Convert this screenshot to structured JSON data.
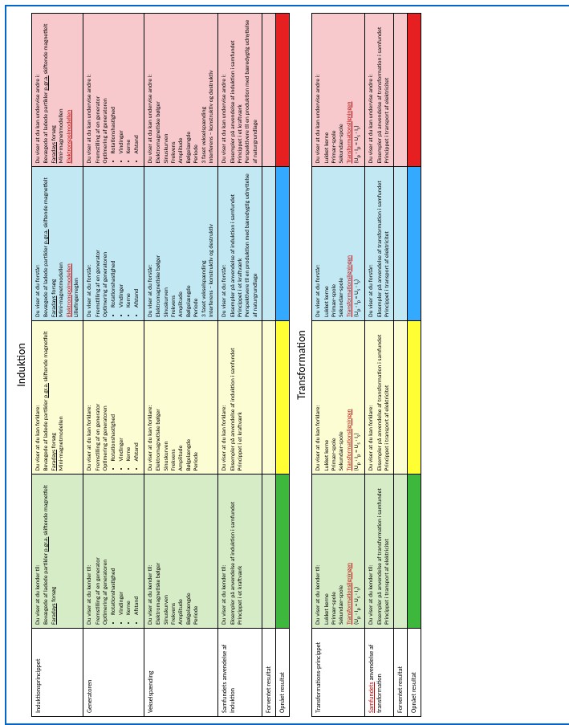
{
  "colors": {
    "border": "#0066cc",
    "col_green": "#d6ecc6",
    "col_yellow": "#fdfdd3",
    "col_blue": "#c2e8f3",
    "col_pink": "#f7c9cd",
    "strong_green": "#3db83d",
    "strong_yellow": "#ffff33",
    "strong_blue": "#33aaff",
    "strong_red": "#e62020"
  },
  "column_heads": {
    "green": "Du viser at du kender til:",
    "yellow": "Du viser at du kan forklare:",
    "blue": "Du viser at du forstår:",
    "pink": "Du viser at du kan undervise andre i:"
  },
  "sections": [
    {
      "title": "Induktion",
      "rows": [
        {
          "label": "Induktionsprincippet",
          "green": [
            "Bevægede af ladede partikler <span class='u'>p.gr.a.</span> skiftende magnetfelt",
            "<span class='u'>Faradays</span> forsøg"
          ],
          "yellow": [
            "Bevægede af ladede partikler <span class='u'>p.gr.a.</span> skiftende magnetfelt",
            "<span class='u'>Faradays</span> forsøg",
            "Mini-magnetmodellen"
          ],
          "blue": [
            "Bevægede af ladede partikler <span class='u'>p.gr.a.</span> skiftende magnetfelt",
            "<span class='u'>Faradays</span> forsøg",
            "Mini-magnetmodellen",
            "<span class='ur'>Elektronspolmodellen</span>",
            "Lillefingerreglen"
          ],
          "pink": [
            "Bevægede af ladede partikler <span class='u'>p.gr.a.</span> skiftende magnetfelt",
            "<span class='u'>Faradays</span> forsøg",
            "Mini-magnetmodellen",
            "<span class='ur'>Elektronspolmodellen</span>"
          ]
        },
        {
          "label": "Generatoren",
          "green": [
            "Fremstilling af en generator",
            "Optimering af generatoren",
            {
              "bullets": [
                "Rotationshastighed",
                "Vindinger",
                "Kerne",
                "Afstand"
              ]
            }
          ],
          "yellow": [
            "Fremstilling af en generator",
            "Optimering af generatoren",
            {
              "bullets": [
                "Rotationshastighed",
                "Vindinger",
                "Kerne",
                "Afstand"
              ]
            }
          ],
          "blue": [
            "Fremstilling af en generator",
            "Optimering af generatoren",
            {
              "bullets": [
                "Rotationshastighed",
                "Vindinger",
                "Kerne",
                "Afstand"
              ]
            }
          ],
          "pink": [
            "Fremstilling af en generator",
            "Optimering af generatoren",
            {
              "bullets": [
                "Rotationshastighed",
                "Vindinger",
                "Kerne",
                "Afstand"
              ]
            }
          ]
        },
        {
          "label": "Vekselspænding",
          "green": [
            "Elektromagnetiske bølger",
            "Sinuskurven",
            "Frekvens",
            "Amplitude",
            "Bølgelængde",
            "Periode"
          ],
          "yellow": [
            "Elektromagnetiske bølger",
            "Sinuskurven",
            "Frekvens",
            "Amplitude",
            "Bølgelængde",
            "Periode"
          ],
          "blue": [
            "Elektromagnetiske bølger",
            "Sinuskurven",
            "Frekvens",
            "Amplitude",
            "Bølgelængde",
            "Periode",
            "3 faset vekselspænding",
            "Interferens – konstruktiv og destruktiv"
          ],
          "pink": [
            "Elektromagnetiske bølger",
            "Sinuskurven",
            "Frekvens",
            "Amplitude",
            "Bølgelængde",
            "Periode",
            "3 faset vekselspænding",
            "Interferens – konstruktiv og destruktiv"
          ]
        },
        {
          "label": "Samfundets anvendelse af induktion",
          "green": [
            "Eksempler på anvendelse af induktion i samfundet",
            "Princippet i et kraftværk"
          ],
          "yellow": [
            "Eksempler på anvendelse af induktion i samfundet",
            "Princippet i et kraftværk"
          ],
          "blue": [
            "Eksempler på anvendelse af induktion i samfundet",
            "Princippet i et kraftværk",
            "Perspektivere til en produktion med bæredygtig udnyttelse af naturgrundlage"
          ],
          "pink": [
            "Eksempler på anvendelse af induktion i samfundet",
            "Princippet i et kraftværk",
            "Perspektivere til en produktion med bæredygtig udnyttelse af naturgrundlage"
          ]
        }
      ],
      "footer_rows": [
        "Forventet resultat",
        "Opnået resultat"
      ]
    },
    {
      "title": "Transformation",
      "rows": [
        {
          "label": "Transformations-princippet",
          "green": [
            "Lukket kerne",
            "Primær-spole",
            "Sekundær-spole",
            "<span class='ur'>Transformationsligningen</span>",
            "(U<sub>p</sub> · I<sub>p</sub> = U<sub>s</sub> · I<sub>s</sub>)"
          ],
          "yellow": [
            "Lukket kerne",
            "Primær-spole",
            "Sekundær-spole",
            "<span class='ur'>Transformationsligningen</span>",
            "(U<sub>p</sub> · I<sub>p</sub> = U<sub>s</sub> · I<sub>s</sub>)"
          ],
          "blue": [
            "Lukket kerne",
            "Primær-spole",
            "Sekundær-spole",
            "<span class='ur'>Transformationsligningen</span>",
            "(U<sub>p</sub> · I<sub>p</sub> = U<sub>s</sub> · I<sub>s</sub>)"
          ],
          "pink": [
            "Lukket kerne",
            "Primær-spole",
            "Sekundær-spole",
            "<span class='ur'>Transformationsligningen</span>",
            "(U<sub>p</sub> · I<sub>p</sub> = U<sub>s</sub> · I<sub>s</sub>)"
          ]
        },
        {
          "label": "<span class='ur'>Samfundets</span> anvendelse af transformation",
          "green": [
            "Eksempler på anvendelse af transformation i samfundet",
            "Princippet i transport af elektricitet"
          ],
          "yellow": [
            "Eksempler på anvendelse af transformation i samfundet",
            "Princippet i transport af elektricitet"
          ],
          "blue": [
            "Eksempler på anvendelse af transformation i samfundet",
            "Princippet i transport af elektricitet"
          ],
          "pink": [
            "Eksempler på anvendelse af transformation i samfundet",
            "Princippet i transport af elektricitet"
          ]
        }
      ],
      "footer_rows": [
        "Forventet resultat",
        "Opnået resultat"
      ]
    }
  ]
}
